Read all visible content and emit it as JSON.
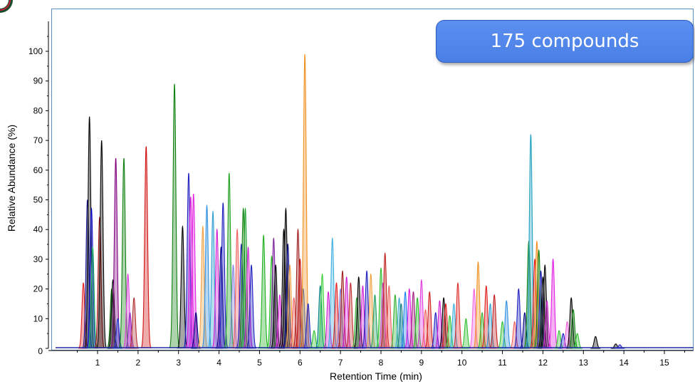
{
  "callout": {
    "text": "175 compounds"
  },
  "colors": {
    "frame": "#5b8fc4",
    "callout_bg": "#4a7fe6",
    "baseline": "#1f2fa8"
  },
  "chart_data": {
    "type": "line",
    "title": "",
    "xlabel": "Retention Time (min)",
    "ylabel": "Relative Abundance (%)",
    "xlim": [
      -0.1,
      15.5
    ],
    "ylim": [
      0,
      110
    ],
    "xticks": [
      1,
      2,
      3,
      4,
      5,
      6,
      7,
      8,
      9,
      10,
      11,
      12,
      13,
      14,
      15
    ],
    "yticks": [
      0,
      10,
      20,
      30,
      40,
      50,
      60,
      70,
      80,
      90,
      100
    ],
    "grid": false,
    "legend": "none",
    "peaks": [
      {
        "rt": 0.65,
        "h": 22,
        "c": "#e02020"
      },
      {
        "rt": 0.75,
        "h": 50,
        "c": "#101090"
      },
      {
        "rt": 0.8,
        "h": 78,
        "c": "#000000"
      },
      {
        "rt": 0.85,
        "h": 47,
        "c": "#1010d0"
      },
      {
        "rt": 0.88,
        "h": 34,
        "c": "#20b060"
      },
      {
        "rt": 1.05,
        "h": 44,
        "c": "#a01010"
      },
      {
        "rt": 1.1,
        "h": 70,
        "c": "#000000"
      },
      {
        "rt": 1.35,
        "h": 20,
        "c": "#006000"
      },
      {
        "rt": 1.38,
        "h": 23,
        "c": "#000000"
      },
      {
        "rt": 1.45,
        "h": 64,
        "c": "#800080"
      },
      {
        "rt": 1.5,
        "h": 10,
        "c": "#2040d0"
      },
      {
        "rt": 1.65,
        "h": 64,
        "c": "#108010"
      },
      {
        "rt": 1.75,
        "h": 25,
        "c": "#e040e0"
      },
      {
        "rt": 1.8,
        "h": 12,
        "c": "#9030c0"
      },
      {
        "rt": 1.9,
        "h": 17,
        "c": "#b03030"
      },
      {
        "rt": 2.2,
        "h": 68,
        "c": "#d01010"
      },
      {
        "rt": 2.9,
        "h": 89,
        "c": "#108010"
      },
      {
        "rt": 3.1,
        "h": 41,
        "c": "#000000"
      },
      {
        "rt": 3.25,
        "h": 59,
        "c": "#2020c0"
      },
      {
        "rt": 3.3,
        "h": 51,
        "c": "#e020e0"
      },
      {
        "rt": 3.37,
        "h": 52,
        "c": "#e020e0"
      },
      {
        "rt": 3.43,
        "h": 12,
        "c": "#000080"
      },
      {
        "rt": 3.6,
        "h": 41,
        "c": "#f0a040"
      },
      {
        "rt": 3.7,
        "h": 48,
        "c": "#3090e0"
      },
      {
        "rt": 3.85,
        "h": 46,
        "c": "#30a0d0"
      },
      {
        "rt": 3.95,
        "h": 40,
        "c": "#d020d0"
      },
      {
        "rt": 4.05,
        "h": 34,
        "c": "#000080"
      },
      {
        "rt": 4.1,
        "h": 49,
        "c": "#2020c0"
      },
      {
        "rt": 4.25,
        "h": 59,
        "c": "#20a020"
      },
      {
        "rt": 4.35,
        "h": 28,
        "c": "#8080e0"
      },
      {
        "rt": 4.45,
        "h": 40,
        "c": "#f06060"
      },
      {
        "rt": 4.55,
        "h": 35,
        "c": "#2020c0"
      },
      {
        "rt": 4.6,
        "h": 47,
        "c": "#108010"
      },
      {
        "rt": 4.65,
        "h": 47,
        "c": "#20a030"
      },
      {
        "rt": 4.72,
        "h": 34,
        "c": "#d020d0"
      },
      {
        "rt": 4.8,
        "h": 28,
        "c": "#2020c0"
      },
      {
        "rt": 5.1,
        "h": 38,
        "c": "#20b020"
      },
      {
        "rt": 5.3,
        "h": 31,
        "c": "#20c020"
      },
      {
        "rt": 5.35,
        "h": 37,
        "c": "#8020a0"
      },
      {
        "rt": 5.4,
        "h": 28,
        "c": "#000000"
      },
      {
        "rt": 5.5,
        "h": 18,
        "c": "#e020e0"
      },
      {
        "rt": 5.6,
        "h": 40,
        "c": "#000000"
      },
      {
        "rt": 5.65,
        "h": 47,
        "c": "#000000"
      },
      {
        "rt": 5.7,
        "h": 35,
        "c": "#000080"
      },
      {
        "rt": 5.75,
        "h": 28,
        "c": "#f0a040"
      },
      {
        "rt": 5.85,
        "h": 17,
        "c": "#f06060"
      },
      {
        "rt": 5.95,
        "h": 40,
        "c": "#a02020"
      },
      {
        "rt": 6.0,
        "h": 30,
        "c": "#c01010"
      },
      {
        "rt": 6.08,
        "h": 20,
        "c": "#3070d0"
      },
      {
        "rt": 6.12,
        "h": 99,
        "c": "#f09020"
      },
      {
        "rt": 6.2,
        "h": 15,
        "c": "#2020c0"
      },
      {
        "rt": 6.35,
        "h": 6,
        "c": "#30c030"
      },
      {
        "rt": 6.5,
        "h": 21,
        "c": "#008080"
      },
      {
        "rt": 6.55,
        "h": 25,
        "c": "#40d040"
      },
      {
        "rt": 6.7,
        "h": 19,
        "c": "#d020d0"
      },
      {
        "rt": 6.8,
        "h": 37,
        "c": "#40b0e0"
      },
      {
        "rt": 6.9,
        "h": 22,
        "c": "#e02020"
      },
      {
        "rt": 7.0,
        "h": 20,
        "c": "#8080e0"
      },
      {
        "rt": 7.05,
        "h": 26,
        "c": "#a02020"
      },
      {
        "rt": 7.15,
        "h": 24,
        "c": "#d020d0"
      },
      {
        "rt": 7.25,
        "h": 22,
        "c": "#c03030"
      },
      {
        "rt": 7.4,
        "h": 17,
        "c": "#30b030"
      },
      {
        "rt": 7.45,
        "h": 24,
        "c": "#000000"
      },
      {
        "rt": 7.55,
        "h": 21,
        "c": "#d020d0"
      },
      {
        "rt": 7.65,
        "h": 26,
        "c": "#2020c0"
      },
      {
        "rt": 7.75,
        "h": 25,
        "c": "#f0a040"
      },
      {
        "rt": 7.85,
        "h": 18,
        "c": "#20a060"
      },
      {
        "rt": 8.0,
        "h": 27,
        "c": "#30c030"
      },
      {
        "rt": 8.05,
        "h": 22,
        "c": "#e040e0"
      },
      {
        "rt": 8.1,
        "h": 32,
        "c": "#c02020"
      },
      {
        "rt": 8.2,
        "h": 21,
        "c": "#f06060"
      },
      {
        "rt": 8.35,
        "h": 18,
        "c": "#30b030"
      },
      {
        "rt": 8.45,
        "h": 17,
        "c": "#40b0d0"
      },
      {
        "rt": 8.5,
        "h": 15,
        "c": "#208080"
      },
      {
        "rt": 8.6,
        "h": 19,
        "c": "#2080f0"
      },
      {
        "rt": 8.7,
        "h": 20,
        "c": "#e020e0"
      },
      {
        "rt": 8.8,
        "h": 19,
        "c": "#a02080"
      },
      {
        "rt": 8.9,
        "h": 17,
        "c": "#20c020"
      },
      {
        "rt": 9.0,
        "h": 23,
        "c": "#e040e0"
      },
      {
        "rt": 9.1,
        "h": 13,
        "c": "#f06060"
      },
      {
        "rt": 9.2,
        "h": 19,
        "c": "#d02020"
      },
      {
        "rt": 9.35,
        "h": 12,
        "c": "#2020c0"
      },
      {
        "rt": 9.45,
        "h": 16,
        "c": "#d020d0"
      },
      {
        "rt": 9.55,
        "h": 17,
        "c": "#000000"
      },
      {
        "rt": 9.6,
        "h": 15,
        "c": "#e02020"
      },
      {
        "rt": 9.7,
        "h": 11,
        "c": "#30c030"
      },
      {
        "rt": 9.8,
        "h": 15,
        "c": "#40b0e0"
      },
      {
        "rt": 9.9,
        "h": 22,
        "c": "#e03030"
      },
      {
        "rt": 10.1,
        "h": 10,
        "c": "#30c030"
      },
      {
        "rt": 10.3,
        "h": 20,
        "c": "#f060e0"
      },
      {
        "rt": 10.4,
        "h": 29,
        "c": "#f09020"
      },
      {
        "rt": 10.5,
        "h": 12,
        "c": "#30b030"
      },
      {
        "rt": 10.6,
        "h": 21,
        "c": "#e02020"
      },
      {
        "rt": 10.7,
        "h": 15,
        "c": "#30a0d0"
      },
      {
        "rt": 10.8,
        "h": 18,
        "c": "#c02020"
      },
      {
        "rt": 11.0,
        "h": 9,
        "c": "#30c030"
      },
      {
        "rt": 11.1,
        "h": 16,
        "c": "#3090e0"
      },
      {
        "rt": 11.3,
        "h": 9,
        "c": "#f06060"
      },
      {
        "rt": 11.4,
        "h": 20,
        "c": "#2020c0"
      },
      {
        "rt": 11.55,
        "h": 12,
        "c": "#000080"
      },
      {
        "rt": 11.65,
        "h": 36,
        "c": "#108010"
      },
      {
        "rt": 11.7,
        "h": 72,
        "c": "#20a0c0"
      },
      {
        "rt": 11.8,
        "h": 30,
        "c": "#e02020"
      },
      {
        "rt": 11.85,
        "h": 36,
        "c": "#f09020"
      },
      {
        "rt": 11.9,
        "h": 33,
        "c": "#108010"
      },
      {
        "rt": 11.95,
        "h": 26,
        "c": "#2020c0"
      },
      {
        "rt": 12.0,
        "h": 24,
        "c": "#000000"
      },
      {
        "rt": 12.05,
        "h": 28,
        "c": "#000000"
      },
      {
        "rt": 12.1,
        "h": 16,
        "c": "#d020d0"
      },
      {
        "rt": 12.25,
        "h": 30,
        "c": "#e020e0"
      },
      {
        "rt": 12.4,
        "h": 6,
        "c": "#30c030"
      },
      {
        "rt": 12.5,
        "h": 5,
        "c": "#2020c0"
      },
      {
        "rt": 12.6,
        "h": 9,
        "c": "#f060e0"
      },
      {
        "rt": 12.7,
        "h": 17,
        "c": "#000000"
      },
      {
        "rt": 12.75,
        "h": 13,
        "c": "#108010"
      },
      {
        "rt": 12.85,
        "h": 5,
        "c": "#30c030"
      },
      {
        "rt": 13.3,
        "h": 4,
        "c": "#000000"
      },
      {
        "rt": 13.8,
        "h": 1.5,
        "c": "#000000"
      },
      {
        "rt": 13.9,
        "h": 1.2,
        "c": "#2020c0"
      }
    ]
  }
}
